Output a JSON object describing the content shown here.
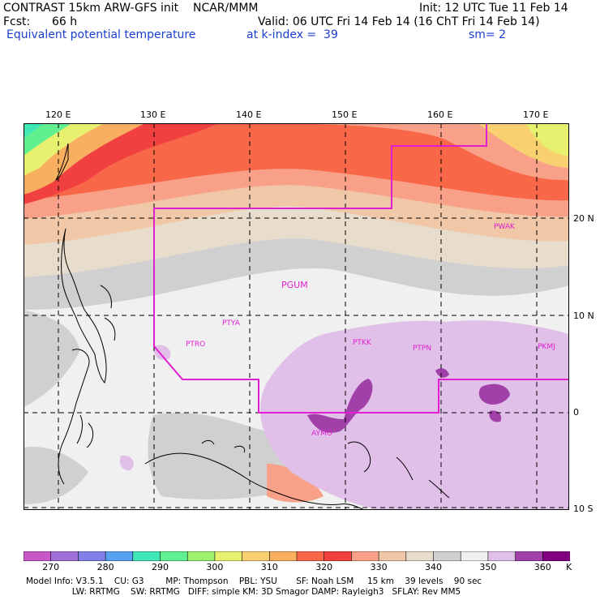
{
  "header": {
    "model_line": "CONTRAST 15km ARW-GFS init    NCAR/MMM",
    "init_line": "Init: 12 UTC Tue 11 Feb 14",
    "fcst_label": "Fcst:",
    "fcst_value": "66 h",
    "valid_line": "Valid: 06 UTC Fri 14 Feb 14 (16 ChT Fri 14 Feb 14)",
    "field_name": "Equivalent potential temperature",
    "level_text": "at k-index =  39",
    "smooth_text": "sm= 2"
  },
  "axes": {
    "lon_labels": [
      "120 E",
      "130 E",
      "140 E",
      "150 E",
      "160 E",
      "170 E"
    ],
    "lat_labels": [
      "20 N",
      "10 N",
      "0",
      "10 S"
    ]
  },
  "stations": [
    "PWAK",
    "PGUM",
    "PTYA",
    "PTRO",
    "PTKK",
    "PTPN",
    "PKMJ",
    "AYMO"
  ],
  "colorbar": {
    "labels": [
      "270",
      "280",
      "290",
      "300",
      "310",
      "320",
      "330",
      "340",
      "350",
      "360"
    ],
    "unit": "K",
    "colors": [
      "#c858c8",
      "#a070d8",
      "#8080e8",
      "#58a0f0",
      "#40e8b8",
      "#60f090",
      "#a0f070",
      "#e8f070",
      "#f8d070",
      "#f8b060",
      "#f86848",
      "#f04040",
      "#f8a088",
      "#f0c8a8",
      "#e8dccc",
      "#d0d0d0",
      "#f0f0f0",
      "#e0c0e8",
      "#a040a8",
      "#800080"
    ]
  },
  "footer": {
    "line1": "Model Info: V3.5.1    CU: G3        MP: Thompson    PBL: YSU       SF: Noah LSM     15 km    39 levels    90 sec",
    "line2": "                 LW: RRTMG    SW: RRTMG   DIFF: simple KM: 3D Smagor DAMP: Rayleigh3   SFLAY: Rev MM5"
  }
}
